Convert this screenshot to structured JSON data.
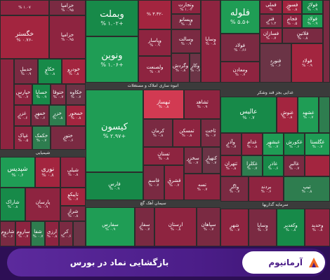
{
  "treemap": {
    "sectors": {
      "retail": "انبوه سازی املاک و مستغلات",
      "food": "غذایی بجز قند وشکر",
      "cement": "سیمان آهک گچ",
      "investment": "سرمایه گذاریها",
      "chemical": "شیمیایی"
    },
    "tiles": {
      "t01": {
        "name": "",
        "change": "% ۱.۰۷"
      },
      "t02": {
        "name": "وبملت",
        "change": "% ۱.۰۲+"
      },
      "t03": {
        "name": "",
        "change": "% ۳.۳۲-"
      },
      "t04": {
        "name": "وتجارت",
        "change": "% ۱.۰۲"
      },
      "t05": {
        "name": "فولاد",
        "change": "% ۰.۶۶"
      },
      "t06": {
        "name": "فملی",
        "change": "%"
      },
      "t07": {
        "name": "فسوز",
        "change": "% ۰.۸"
      },
      "t08": {
        "name": "فولاژ",
        "change": "% ۰.۹"
      },
      "t09": {
        "name": "خگستر",
        "change": "% ۰.۷۶-"
      },
      "t10": {
        "name": "خزامیا",
        "change": "% ۰.۹۵"
      },
      "t11": {
        "name": "ونوین",
        "change": "% ۱.۰۶+"
      },
      "t12": {
        "name": "وپاسار",
        "change": "% ۰.۹"
      },
      "t13": {
        "name": "وسالت",
        "change": "% ۰.۹"
      },
      "t14": {
        "name": "وپسانو",
        "change": "% ۰.۸"
      },
      "t15": {
        "name": "فلوله",
        "change": "% ۵.۵+"
      },
      "t16": {
        "name": "فنر",
        "change": "% ۱.۲"
      },
      "t17": {
        "name": "فسازان",
        "change": "% ۰.۷"
      },
      "t18": {
        "name": "فنورد",
        "change": "% ۰.۶"
      },
      "t19": {
        "name": "وگردش",
        "change": "% ۰.۸"
      },
      "t20": {
        "name": "وساپا",
        "change": "% ۰.۸"
      },
      "t21": {
        "name": "وکار",
        "change": "% ۰.۶"
      },
      "t22": {
        "name": "ولصنعت",
        "change": "% ۰.۷"
      },
      "t23": {
        "name": "فجام",
        "change": "% ۰.۵"
      },
      "t24": {
        "name": "فولاد",
        "change": "% ۰.۹"
      },
      "t25": {
        "name": "فلاتین",
        "change": "% ۰.۸"
      },
      "t26": {
        "name": "ومعادن",
        "change": "% ۰.۷"
      },
      "t27": {
        "name": "خدیبل",
        "change": "% ۰.۹"
      },
      "t28": {
        "name": "خکاو",
        "change": "% ۰.۸"
      },
      "t29": {
        "name": "خپارس",
        "change": "% ۰.۷"
      },
      "t30": {
        "name": "خساپا",
        "change": "% ۰.۹"
      },
      "t31": {
        "name": "ختوقا",
        "change": "% ۰.۷"
      },
      "t32": {
        "name": "غزر",
        "change": "% ۰.۶"
      },
      "t33": {
        "name": "غپاک",
        "change": "% ۰.۵"
      },
      "t34": {
        "name": "خکاوه",
        "change": "% ۰.۷"
      },
      "t35": {
        "name": "خودرو",
        "change": "% ۰.۸"
      },
      "t36": {
        "name": "خمحور",
        "change": "% ۰.۸"
      },
      "t37": {
        "name": "کیسون",
        "change": "% ۲.۹۷+"
      },
      "t38": {
        "name": "ثبهساز",
        "change": "% ۰.۸"
      },
      "t39": {
        "name": "ثشاهد",
        "change": "% ۰.۹"
      },
      "t40": {
        "name": "عالیس",
        "change": "% ۰.۷"
      },
      "t41": {
        "name": "غنوش",
        "change": "% ۰.۸"
      },
      "t42": {
        "name": "غشهد",
        "change": "% ۰.۷"
      },
      "t43": {
        "name": "خمهر",
        "change": "% ۰.۶"
      },
      "t44": {
        "name": "خکمک",
        "change": "% ۰.۷"
      },
      "t45": {
        "name": "خزر",
        "change": "% ۰.۸"
      },
      "t46": {
        "name": "ختور",
        "change": "% ۰.۶"
      },
      "t47": {
        "name": "ثاخت",
        "change": "% ۰.۷"
      },
      "t48": {
        "name": "ثمسکن",
        "change": "% ۰.۸"
      },
      "t49": {
        "name": "ثتهران",
        "change": "% ۰.۸"
      },
      "t50": {
        "name": "وآذر",
        "change": "% ۰.۷"
      },
      "t51": {
        "name": "غدام",
        "change": "% ۰.۸"
      },
      "t52": {
        "name": "غبشهر",
        "change": "% ۰.۷"
      },
      "t53": {
        "name": "غکورش",
        "change": "% ۰.۶"
      },
      "t54": {
        "name": "غگلستا",
        "change": "% ۰.۷"
      },
      "t55": {
        "name": "شپدیس",
        "change": "% ۰.۶"
      },
      "t56": {
        "name": "نوری",
        "change": "% ۰.۸"
      },
      "t57": {
        "name": "شیلی",
        "change": "% ۰.۸"
      },
      "t58": {
        "name": "فارس",
        "change": "% ۰.۹"
      },
      "t59": {
        "name": "تستان",
        "change": "% ۰.۸"
      },
      "t60": {
        "name": "سخزر",
        "change": "% ۰.۷"
      },
      "t61": {
        "name": "غکلرا",
        "change": "% ۰.۷"
      },
      "t62": {
        "name": "غاذر",
        "change": "% ۰.۶"
      },
      "t63": {
        "name": "غالبر",
        "change": "% ۰.۷"
      },
      "t64": {
        "name": "شاراک",
        "change": "% ۰.۸"
      },
      "t65": {
        "name": "شراز",
        "change": "% ۰.۸"
      },
      "t66": {
        "name": "پارسان",
        "change": "% ۰.۹"
      },
      "t67": {
        "name": "تاپیکو",
        "change": "% ۰.۷"
      },
      "t68": {
        "name": "سفارس",
        "change": "% ۰.۹"
      },
      "t69": {
        "name": "ساروم",
        "change": "% ۰.۷"
      },
      "t70": {
        "name": "سپاهان",
        "change": "% ۰.۷"
      },
      "t71": {
        "name": "سیستم",
        "change": "% ۰.۸"
      },
      "t72": {
        "name": "وساپا",
        "change": "% ۰.۷"
      },
      "t73": {
        "name": "وکغدیر",
        "change": "% ۰.۸"
      },
      "t74": {
        "name": "شاروم",
        "change": "% ۰.۶"
      },
      "t75": {
        "name": "شفا",
        "change": "% ۰.۷"
      },
      "t76": {
        "name": "ارزی",
        "change": "% ۰.۸"
      },
      "t77": {
        "name": "کر",
        "change": "% ۰.۶"
      },
      "t78": {
        "name": "سفار",
        "change": "% ۰.۷"
      },
      "t79": {
        "name": "وسپه",
        "change": "% ۰.۶"
      },
      "t80": {
        "name": "شهر",
        "change": "% ۰.۷"
      },
      "t81": {
        "name": "وحدید",
        "change": "% ۰.۸"
      },
      "t82": {
        "name": "تسه",
        "change": "% ۰.۷"
      },
      "t83": {
        "name": "وبشهر",
        "change": "% ۰.۶"
      },
      "t84": {
        "name": "کرمان",
        "change": "% ۰.۸"
      },
      "t85": {
        "name": "کنهپار",
        "change": "% ۰.۷"
      },
      "t86": {
        "name": "واگر",
        "change": "% ۰.۷"
      },
      "t87": {
        "name": "بردند",
        "change": "% ۰.۶"
      },
      "t88": {
        "name": "تیپ",
        "change": "% ۰.۸"
      },
      "t89": {
        "name": "قاسم",
        "change": "% ۰.۷"
      },
      "t90": {
        "name": "ارستان",
        "change": "% ۰.۸"
      },
      "t91": {
        "name": "قشرق",
        "change": "% ۰.۷"
      }
    }
  },
  "banner": {
    "caption": "بازگشایی نماد در بورس",
    "brand": "آرمانیوم",
    "logo_icon": "armanium-logo-icon"
  }
}
